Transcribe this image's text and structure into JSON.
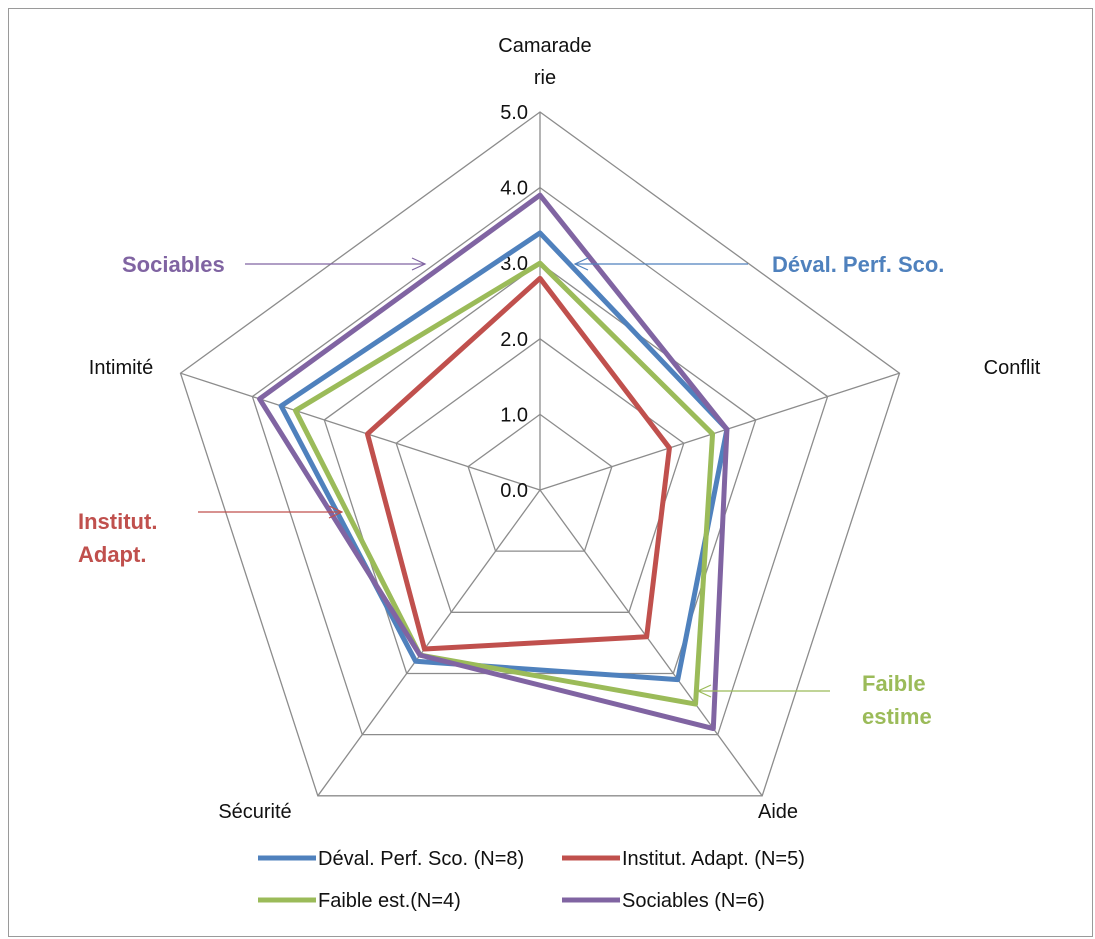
{
  "chart_data": {
    "type": "radar",
    "axes": [
      "Camaraderie",
      "Conflit",
      "Aide",
      "Sécurité",
      "Intimité"
    ],
    "axis_label_lines": [
      [
        "Camarade",
        "rie"
      ],
      [
        "Conflit"
      ],
      [
        "Aide"
      ],
      [
        "Sécurité"
      ],
      [
        "Intimité"
      ]
    ],
    "rlim": [
      0,
      5
    ],
    "ticks": [
      "0.0",
      "1.0",
      "2.0",
      "3.0",
      "4.0",
      "5.0"
    ],
    "tick_values": [
      0,
      1,
      2,
      3,
      4,
      5
    ],
    "grid": true,
    "legend_position": "bottom",
    "series": [
      {
        "name": "Déval. Perf. Sco. (N=8)",
        "color": "#4F81BD",
        "values": [
          3.4,
          2.6,
          3.1,
          2.8,
          3.6
        ]
      },
      {
        "name": "Institut. Adapt. (N=5)",
        "color": "#C0504D",
        "values": [
          2.8,
          1.8,
          2.4,
          2.6,
          2.4
        ]
      },
      {
        "name": "Faible est.(N=4)",
        "color": "#9BBB59",
        "values": [
          3.0,
          2.4,
          3.5,
          2.7,
          3.4
        ]
      },
      {
        "name": "Sociables (N=6)",
        "color": "#8064A2",
        "values": [
          3.9,
          2.6,
          3.9,
          2.7,
          3.9
        ]
      }
    ],
    "annotations": [
      {
        "lines": [
          "Sociables"
        ],
        "color": "#8064A2"
      },
      {
        "lines": [
          "Déval. Perf. Sco."
        ],
        "color": "#4F81BD"
      },
      {
        "lines": [
          "Institut.",
          "Adapt."
        ],
        "color": "#C0504D"
      },
      {
        "lines": [
          "Faible",
          "estime"
        ],
        "color": "#9BBB59"
      }
    ]
  }
}
